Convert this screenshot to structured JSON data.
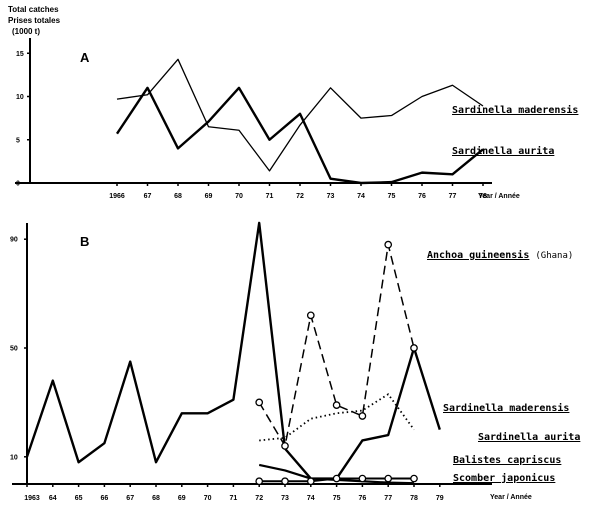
{
  "y_title": [
    "Total catches",
    "Prises totales",
    "(1000 t)"
  ],
  "chart_data": [
    {
      "type": "line",
      "panel": "A",
      "x": [
        1966,
        1967,
        1968,
        1969,
        1970,
        1971,
        1972,
        1973,
        1974,
        1975,
        1976,
        1977,
        1978
      ],
      "x_tick_labels": [
        "1966",
        "67",
        "68",
        "69",
        "70",
        "71",
        "72",
        "73",
        "74",
        "75",
        "76",
        "77",
        "78"
      ],
      "xlabel": "Year / Année",
      "y_ticks": [
        0,
        5,
        10,
        15
      ],
      "y_tick_labels": [
        "0",
        "5",
        "10",
        "15"
      ],
      "ylim": [
        0,
        17
      ],
      "series": [
        {
          "name": "Sardinella maderensis",
          "stroke_width": 1.3,
          "values": [
            9.7,
            10.2,
            14.3,
            6.5,
            6.1,
            1.4,
            6.7,
            11.0,
            7.5,
            7.8,
            10.0,
            11.3,
            8.9
          ]
        },
        {
          "name": "Sardinella aurita",
          "stroke_width": 2.4,
          "values": [
            5.7,
            11.0,
            4.0,
            7.1,
            11.0,
            5.0,
            8.0,
            0.5,
            0.0,
            0.1,
            1.2,
            1.0,
            3.9
          ]
        }
      ]
    },
    {
      "type": "line",
      "panel": "B",
      "x_tick_labels": [
        "1963",
        "64",
        "65",
        "66",
        "67",
        "68",
        "69",
        "70",
        "71",
        "72",
        "73",
        "74",
        "75",
        "76",
        "77",
        "78",
        "79"
      ],
      "xlabel": "Year / Année",
      "y_ticks": [
        10,
        50,
        90
      ],
      "y_tick_labels": [
        "10",
        "50",
        "90"
      ],
      "ylim": [
        0,
        100
      ],
      "series": [
        {
          "name": "Sardinella aurita",
          "style": "solid-thick",
          "x": [
            1963,
            1964,
            1965,
            1966,
            1967,
            1968,
            1969,
            1970,
            1971,
            1972,
            1973,
            1974,
            1975,
            1976,
            1977,
            1978,
            1979
          ],
          "values": [
            10,
            38,
            8,
            15,
            45,
            8,
            26,
            26,
            31,
            96,
            13,
            2,
            2,
            16,
            18,
            50,
            20
          ]
        },
        {
          "name": "Anchoa guineensis",
          "note": "(Ghana)",
          "style": "dashed-circles",
          "x": [
            1972,
            1973,
            1974,
            1975,
            1976,
            1977,
            1978
          ],
          "values": [
            30,
            14,
            62,
            29,
            25,
            88,
            50
          ]
        },
        {
          "name": "Sardinella maderensis",
          "style": "dotted",
          "x": [
            1972,
            1973,
            1974,
            1975,
            1976,
            1977,
            1978
          ],
          "values": [
            16,
            17,
            24,
            26,
            27,
            33,
            20
          ]
        },
        {
          "name": "Balistes capriscus",
          "style": "solid-medium",
          "x": [
            1972,
            1973,
            1974,
            1975,
            1976,
            1977,
            1978
          ],
          "values": [
            7,
            5,
            2,
            1.5,
            1,
            0.5,
            0.3
          ]
        },
        {
          "name": "Scomber japonicus",
          "style": "solid-circles",
          "x": [
            1972,
            1973,
            1974,
            1975,
            1976,
            1977,
            1978
          ],
          "values": [
            1,
            1,
            1,
            2,
            2,
            2,
            2
          ]
        }
      ]
    }
  ]
}
